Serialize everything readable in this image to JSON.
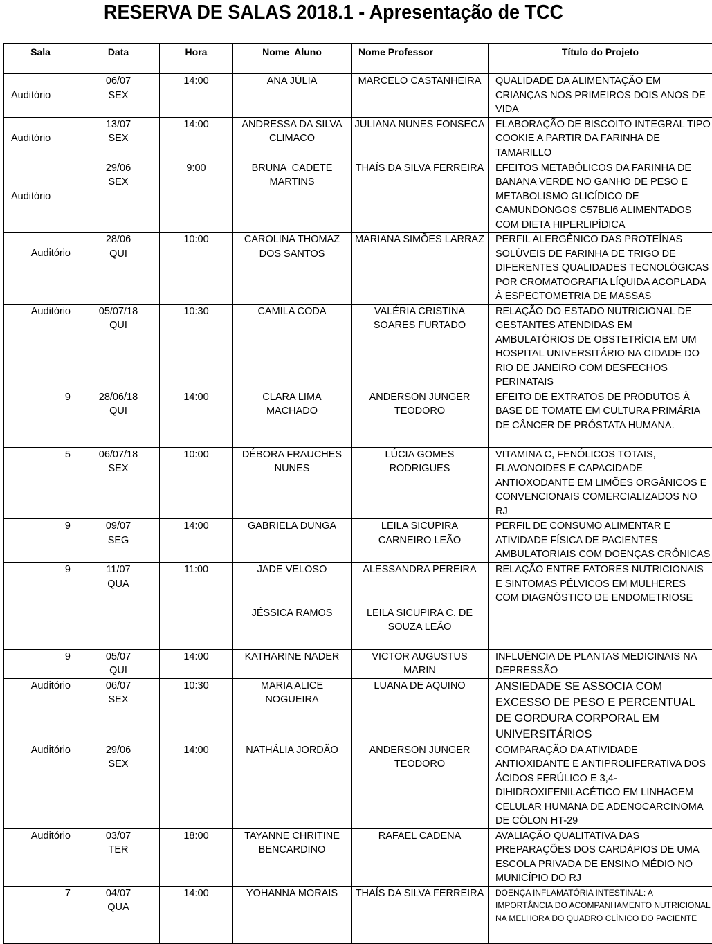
{
  "title": "RESERVA DE SALAS 2018.1 - Apresentação de TCC",
  "columns": [
    "Sala",
    "Data",
    "Hora",
    "Nome  Aluno",
    "Nome Professor",
    "Título do Projeto"
  ],
  "rows": [
    {
      "sala": "Auditório",
      "data": "06/07\nSEX",
      "hora": "14:00",
      "aluno": "ANA JÚLIA",
      "professor": "MARCELO CASTANHEIRA",
      "titulo": "QUALIDADE DA ALIMENTAÇÃO EM CRIANÇAS NOS PRIMEIROS DOIS ANOS DE VIDA"
    },
    {
      "sala": "Auditório",
      "data": "13/07\nSEX",
      "hora": "14:00",
      "aluno": "ANDRESSA DA SILVA CLIMACO",
      "professor": "JULIANA NUNES FONSECA",
      "titulo": "ELABORAÇÃO DE BISCOITO INTEGRAL TIPO COOKIE A PARTIR DA FARINHA DE TAMARILLO"
    },
    {
      "sala": "Auditório",
      "data": "29/06\nSEX",
      "hora": "9:00",
      "aluno": "BRUNA  CADETE MARTINS",
      "professor": "THAÍS DA SILVA FERREIRA",
      "titulo": "EFEITOS METABÓLICOS DA FARINHA DE BANANA VERDE NO GANHO DE PESO E METABOLISMO GLICÍDICO DE CAMUNDONGOS C57BLl6 ALIMENTADOS COM DIETA HIPERLIPÍDICA"
    },
    {
      "sala": "Auditório",
      "data": "28/06\nQUI",
      "hora": "10:00",
      "aluno": "CAROLINA THOMAZ DOS SANTOS",
      "professor": "MARIANA SIMÕES LARRAZ",
      "titulo": "PERFIL ALERGÊNICO DAS PROTEÍNAS SOLÚVEIS DE FARINHA DE TRIGO DE DIFERENTES QUALIDADES TECNOLÓGICAS POR CROMATOGRAFIA LÍQUIDA ACOPLADA À ESPECTOMETRIA DE MASSAS"
    },
    {
      "sala": "Auditório",
      "data": "05/07/18\nQUI",
      "hora": "10:30",
      "aluno": "CAMILA CODA",
      "professor": "VALÉRIA CRISTINA SOARES FURTADO",
      "titulo": "RELAÇÃO DO ESTADO NUTRICIONAL DE GESTANTES ATENDIDAS EM AMBULATÓRIOS DE OBSTETRÍCIA EM UM HOSPITAL UNIVERSITÁRIO NA CIDADE DO RIO DE JANEIRO COM DESFECHOS PERINATAIS"
    },
    {
      "sala": "9",
      "data": "28/06/18\nQUI",
      "hora": "14:00",
      "aluno": "CLARA LIMA MACHADO",
      "professor": "ANDERSON JUNGER TEODORO",
      "titulo": "EFEITO DE EXTRATOS DE PRODUTOS À BASE DE TOMATE EM CULTURA PRIMÁRIA DE CÂNCER DE PRÓSTATA HUMANA."
    },
    {
      "sala": "5",
      "data": "06/07/18\nSEX",
      "hora": "10:00",
      "aluno": "DÉBORA FRAUCHES NUNES",
      "professor": "LÚCIA GOMES RODRIGUES",
      "titulo": "VITAMINA C, FENÓLICOS TOTAIS, FLAVONOIDES E CAPACIDADE ANTIOXODANTE EM LIMÕES ORGÂNICOS E CONVENCIONAIS COMERCIALIZADOS NO RJ"
    },
    {
      "sala": "9",
      "data": "09/07\nSEG",
      "hora": "14:00",
      "aluno": "GABRIELA DUNGA",
      "professor": "LEILA SICUPIRA CARNEIRO LEÃO",
      "titulo": "PERFIL DE CONSUMO ALIMENTAR E ATIVIDADE FÍSICA DE PACIENTES AMBULATORIAIS COM DOENÇAS CRÔNICAS"
    },
    {
      "sala": "9",
      "data": "11/07\nQUA",
      "hora": "11:00",
      "aluno": "JADE VELOSO",
      "professor": "ALESSANDRA PEREIRA",
      "titulo": "RELAÇÃO ENTRE FATORES NUTRICIONAIS E SINTOMAS PÉLVICOS EM MULHERES COM DIAGNÓSTICO DE ENDOMETRIOSE"
    },
    {
      "sala": "",
      "data": "",
      "hora": "",
      "aluno": "JÉSSICA RAMOS",
      "professor": "LEILA SICUPIRA C. DE SOUZA LEÃO",
      "titulo": ""
    },
    {
      "sala": "9",
      "data": "05/07\nQUI",
      "hora": "14:00",
      "aluno": "KATHARINE NADER",
      "professor": "VICTOR AUGUSTUS MARIN",
      "titulo": "INFLUÊNCIA DE PLANTAS MEDICINAIS NA DEPRESSÃO"
    },
    {
      "sala": "Auditório",
      "data": "06/07\nSEX",
      "hora": "10:30",
      "aluno": "MARIA ALICE NOGUEIRA",
      "professor": "LUANA DE AQUINO",
      "titulo": "ANSIEDADE SE ASSOCIA COM EXCESSO DE PESO E PERCENTUAL DE GORDURA CORPORAL EM UNIVERSITÁRIOS"
    },
    {
      "sala": "Auditório",
      "data": "29/06\nSEX",
      "hora": "14:00",
      "aluno": "NATHÁLIA JORDÃO",
      "professor": "ANDERSON JUNGER TEODORO",
      "titulo": "COMPARAÇÃO DA ATIVIDADE ANTIOXIDANTE E ANTIPROLIFERATIVA DOS ÁCIDOS FERÚLICO E 3,4-DIHIDROXIFENILACÉTICO EM LINHAGEM CELULAR HUMANA DE ADENOCARCINOMA DE CÓLON HT-29"
    },
    {
      "sala": "Auditório",
      "data": "03/07\nTER",
      "hora": "18:00",
      "aluno": "TAYANNE CHRITINE BENCARDINO",
      "professor": "RAFAEL CADENA",
      "titulo": "AVALIAÇÃO QUALITATIVA DAS PREPARAÇÕES DOS CARDÁPIOS DE UMA ESCOLA PRIVADA DE ENSINO MÉDIO NO MUNICÍPIO DO RJ"
    },
    {
      "sala": "7",
      "data": "04/07\nQUA",
      "hora": "14:00",
      "aluno": "YOHANNA MORAIS",
      "professor": "THAÍS DA SILVA FERREIRA",
      "titulo": "DOENÇA INFLAMATÓRIA INTESTINAL: A IMPORTÂNCIA DO ACOMPANHAMENTO NUTRICIONAL NA MELHORA DO QUADRO CLÍNICO DO PACIENTE"
    }
  ]
}
